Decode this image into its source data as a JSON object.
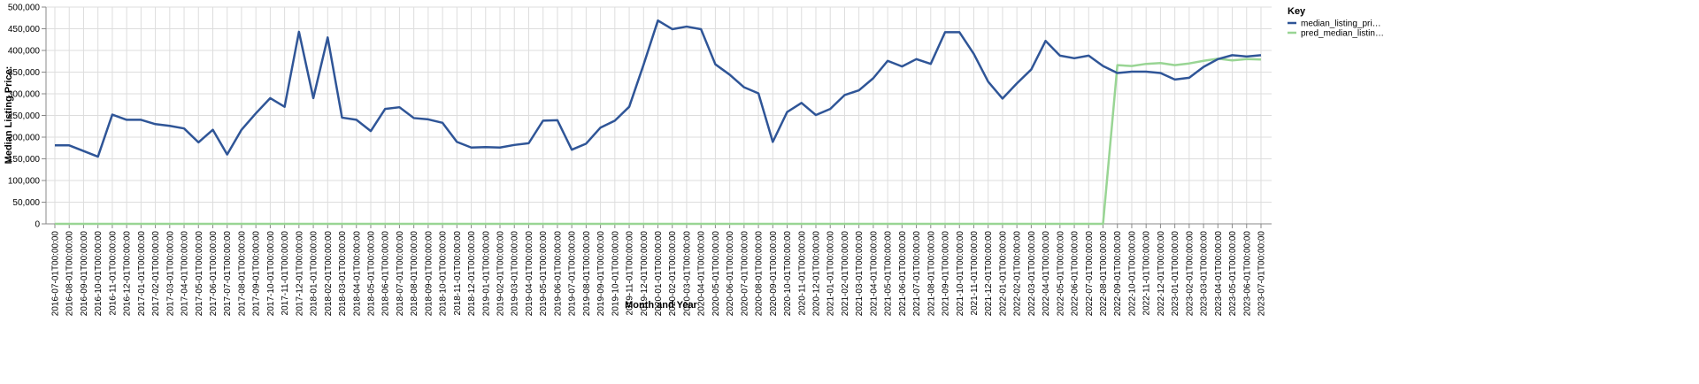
{
  "chart_data": {
    "type": "line",
    "xlabel": "Month and Year",
    "ylabel": "Median Listing Price:",
    "ylim": [
      0,
      500000
    ],
    "yticks": [
      "0",
      "50,000",
      "100,000",
      "150,000",
      "200,000",
      "250,000",
      "300,000",
      "350,000",
      "400,000",
      "450,000",
      "500,000"
    ],
    "ytick_values": [
      0,
      50000,
      100000,
      150000,
      200000,
      250000,
      300000,
      350000,
      400000,
      450000,
      500000
    ],
    "grid": true,
    "legend": {
      "title": "Key",
      "position": "top-right"
    },
    "x": [
      "2016-07-01T00:00:00",
      "2016-08-01T00:00:00",
      "2016-09-01T00:00:00",
      "2016-10-01T00:00:00",
      "2016-11-01T00:00:00",
      "2016-12-01T00:00:00",
      "2017-01-01T00:00:00",
      "2017-02-01T00:00:00",
      "2017-03-01T00:00:00",
      "2017-04-01T00:00:00",
      "2017-05-01T00:00:00",
      "2017-06-01T00:00:00",
      "2017-07-01T00:00:00",
      "2017-08-01T00:00:00",
      "2017-09-01T00:00:00",
      "2017-10-01T00:00:00",
      "2017-11-01T00:00:00",
      "2017-12-01T00:00:00",
      "2018-01-01T00:00:00",
      "2018-02-01T00:00:00",
      "2018-03-01T00:00:00",
      "2018-04-01T00:00:00",
      "2018-05-01T00:00:00",
      "2018-06-01T00:00:00",
      "2018-07-01T00:00:00",
      "2018-08-01T00:00:00",
      "2018-09-01T00:00:00",
      "2018-10-01T00:00:00",
      "2018-11-01T00:00:00",
      "2018-12-01T00:00:00",
      "2019-01-01T00:00:00",
      "2019-02-01T00:00:00",
      "2019-03-01T00:00:00",
      "2019-04-01T00:00:00",
      "2019-05-01T00:00:00",
      "2019-06-01T00:00:00",
      "2019-07-01T00:00:00",
      "2019-08-01T00:00:00",
      "2019-09-01T00:00:00",
      "2019-10-01T00:00:00",
      "2019-11-01T00:00:00",
      "2019-12-01T00:00:00",
      "2020-01-01T00:00:00",
      "2020-02-01T00:00:00",
      "2020-03-01T00:00:00",
      "2020-04-01T00:00:00",
      "2020-05-01T00:00:00",
      "2020-06-01T00:00:00",
      "2020-07-01T00:00:00",
      "2020-08-01T00:00:00",
      "2020-09-01T00:00:00",
      "2020-10-01T00:00:00",
      "2020-11-01T00:00:00",
      "2020-12-01T00:00:00",
      "2021-01-01T00:00:00",
      "2021-02-01T00:00:00",
      "2021-03-01T00:00:00",
      "2021-04-01T00:00:00",
      "2021-05-01T00:00:00",
      "2021-06-01T00:00:00",
      "2021-07-01T00:00:00",
      "2021-08-01T00:00:00",
      "2021-09-01T00:00:00",
      "2021-10-01T00:00:00",
      "2021-11-01T00:00:00",
      "2021-12-01T00:00:00",
      "2022-01-01T00:00:00",
      "2022-02-01T00:00:00",
      "2022-03-01T00:00:00",
      "2022-04-01T00:00:00",
      "2022-05-01T00:00:00",
      "2022-06-01T00:00:00",
      "2022-07-01T00:00:00",
      "2022-08-01T00:00:00",
      "2022-09-01T00:00:00",
      "2022-10-01T00:00:00",
      "2022-11-01T00:00:00",
      "2022-12-01T00:00:00",
      "2023-01-01T00:00:00",
      "2023-02-01T00:00:00",
      "2023-03-01T00:00:00",
      "2023-04-01T00:00:00",
      "2023-05-01T00:00:00",
      "2023-06-01T00:00:00",
      "2023-07-01T00:00:00"
    ],
    "series": [
      {
        "name": "median_listing_pri…",
        "color": "#2f5597",
        "values": [
          181000,
          181000,
          168000,
          155000,
          252000,
          240000,
          240000,
          230000,
          226000,
          220000,
          188000,
          217000,
          160000,
          217000,
          255000,
          290000,
          270000,
          443000,
          290000,
          430000,
          245000,
          240000,
          214000,
          265000,
          269000,
          244000,
          241000,
          233000,
          189000,
          176000,
          177000,
          176000,
          182000,
          186000,
          238000,
          239000,
          171000,
          185000,
          222000,
          238000,
          270000,
          367000,
          469000,
          449000,
          455000,
          449000,
          368000,
          344000,
          315000,
          301000,
          189000,
          258000,
          279000,
          251000,
          265000,
          297000,
          308000,
          336000,
          376000,
          363000,
          380000,
          369000,
          442000,
          442000,
          392000,
          328000,
          289000,
          324000,
          356000,
          422000,
          388000,
          382000,
          388000,
          364000,
          348000,
          351000,
          351000,
          348000,
          333000,
          337000,
          362000,
          380000,
          389000,
          386000,
          389000
        ]
      },
      {
        "name": "pred_median_listin…",
        "color": "#99d594",
        "values": [
          0,
          0,
          0,
          0,
          0,
          0,
          0,
          0,
          0,
          0,
          0,
          0,
          0,
          0,
          0,
          0,
          0,
          0,
          0,
          0,
          0,
          0,
          0,
          0,
          0,
          0,
          0,
          0,
          0,
          0,
          0,
          0,
          0,
          0,
          0,
          0,
          0,
          0,
          0,
          0,
          0,
          0,
          0,
          0,
          0,
          0,
          0,
          0,
          0,
          0,
          0,
          0,
          0,
          0,
          0,
          0,
          0,
          0,
          0,
          0,
          0,
          0,
          0,
          0,
          0,
          0,
          0,
          0,
          0,
          0,
          0,
          0,
          0,
          0,
          366000,
          364000,
          369000,
          371000,
          366000,
          370000,
          376000,
          381000,
          377000,
          380000,
          379000
        ]
      }
    ]
  }
}
